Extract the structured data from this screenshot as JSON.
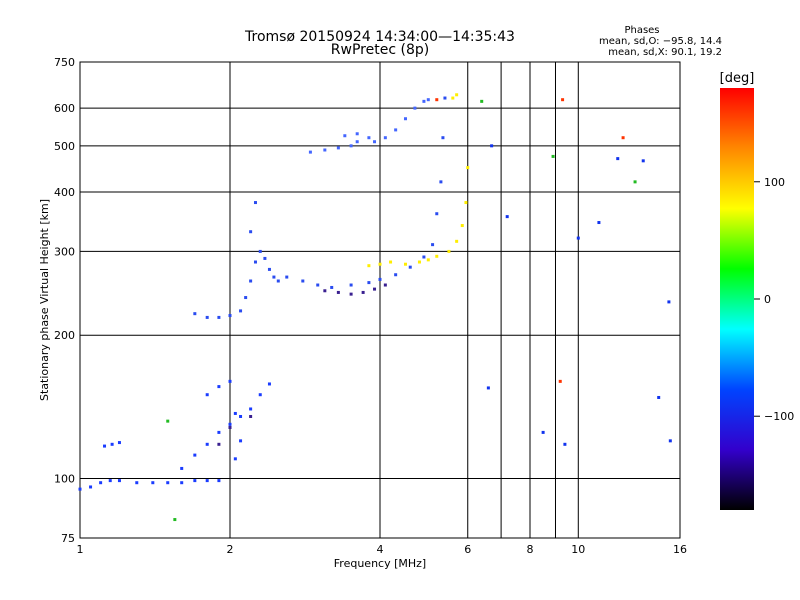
{
  "chart_data": {
    "type": "scatter",
    "title": "Tromsø 20150924 14:34:00—14:35:43",
    "subtitle": "RwPretec (8p)",
    "xlabel": "Frequency [MHz]",
    "ylabel": "Stationary phase Virtual Height [km]",
    "x_scale": "log",
    "y_scale": "log",
    "xlim": [
      1,
      16
    ],
    "ylim": [
      75,
      750
    ],
    "x_ticks": [
      1,
      2,
      4,
      6,
      8,
      10,
      16
    ],
    "x_tick_labels": [
      "1",
      "2",
      "4",
      "6",
      "8",
      "10",
      "16"
    ],
    "x_grid": [
      2,
      4,
      6,
      7,
      8,
      9,
      10
    ],
    "y_ticks": [
      75,
      100,
      200,
      300,
      400,
      500,
      600,
      750
    ],
    "y_tick_labels": [
      "75",
      "100",
      "200",
      "300",
      "400",
      "500",
      "600",
      "750"
    ],
    "y_grid": [
      100,
      200,
      300,
      400,
      500,
      600
    ],
    "grid": true,
    "phases_box": {
      "title": "Phases",
      "line1": "mean, sd,O: −95.8, 14.4",
      "line2": "mean, sd,X:  90.1, 19.2"
    },
    "colorbar": {
      "label": "[deg]",
      "range": [
        -180,
        180
      ],
      "ticks": [
        100,
        0,
        -100
      ],
      "tick_labels": [
        "100",
        "0",
        "−100"
      ],
      "colors": [
        "#ff0000",
        "#ff8800",
        "#ffff00",
        "#00ff00",
        "#00ffff",
        "#0044ff",
        "#3300cc",
        "#000000"
      ]
    },
    "series": [
      {
        "color": "#1a3cff",
        "points": [
          [
            1.0,
            95
          ],
          [
            1.05,
            96
          ],
          [
            1.1,
            98
          ],
          [
            1.15,
            99
          ],
          [
            1.2,
            99
          ],
          [
            1.3,
            98
          ],
          [
            1.4,
            98
          ],
          [
            1.5,
            98
          ],
          [
            1.6,
            98
          ],
          [
            1.7,
            99
          ],
          [
            1.8,
            99
          ],
          [
            1.9,
            99
          ],
          [
            1.12,
            117
          ],
          [
            1.16,
            118
          ],
          [
            1.2,
            119
          ],
          [
            1.6,
            105
          ],
          [
            1.7,
            112
          ],
          [
            1.8,
            118
          ],
          [
            1.9,
            125
          ],
          [
            2.0,
            130
          ],
          [
            2.05,
            137
          ],
          [
            2.1,
            135
          ],
          [
            2.2,
            140
          ],
          [
            2.3,
            150
          ],
          [
            2.4,
            158
          ],
          [
            1.8,
            150
          ],
          [
            1.9,
            156
          ],
          [
            2.0,
            160
          ],
          [
            2.05,
            110
          ],
          [
            2.1,
            120
          ]
        ]
      },
      {
        "color": "#2a4cf0",
        "points": [
          [
            1.7,
            222
          ],
          [
            1.8,
            218
          ],
          [
            1.9,
            218
          ],
          [
            2.0,
            220
          ],
          [
            2.1,
            225
          ],
          [
            2.15,
            240
          ],
          [
            2.2,
            260
          ],
          [
            2.25,
            285
          ],
          [
            2.3,
            300
          ],
          [
            2.35,
            290
          ],
          [
            2.4,
            275
          ],
          [
            2.45,
            265
          ],
          [
            2.5,
            260
          ],
          [
            2.2,
            330
          ],
          [
            2.25,
            380
          ],
          [
            2.6,
            265
          ],
          [
            2.8,
            260
          ],
          [
            3.0,
            255
          ],
          [
            3.2,
            252
          ],
          [
            3.5,
            255
          ],
          [
            3.8,
            258
          ],
          [
            4.0,
            262
          ],
          [
            4.3,
            268
          ],
          [
            4.6,
            278
          ],
          [
            4.9,
            292
          ],
          [
            5.1,
            310
          ],
          [
            5.2,
            360
          ],
          [
            5.3,
            420
          ],
          [
            5.35,
            520
          ],
          [
            5.4,
            630
          ]
        ]
      },
      {
        "color": "#4466ff",
        "points": [
          [
            2.9,
            485
          ],
          [
            3.1,
            490
          ],
          [
            3.3,
            495
          ],
          [
            3.5,
            500
          ],
          [
            3.6,
            510
          ],
          [
            3.4,
            525
          ],
          [
            3.6,
            530
          ],
          [
            3.8,
            520
          ],
          [
            3.9,
            510
          ],
          [
            4.1,
            520
          ],
          [
            4.3,
            540
          ],
          [
            4.5,
            570
          ],
          [
            4.7,
            600
          ],
          [
            4.9,
            620
          ],
          [
            5.0,
            625
          ]
        ]
      },
      {
        "color": "#ffee00",
        "points": [
          [
            3.8,
            280
          ],
          [
            4.0,
            282
          ],
          [
            4.2,
            285
          ],
          [
            4.5,
            282
          ],
          [
            4.8,
            285
          ],
          [
            5.0,
            288
          ],
          [
            5.2,
            293
          ],
          [
            5.5,
            300
          ],
          [
            5.7,
            315
          ],
          [
            5.85,
            340
          ],
          [
            5.95,
            380
          ],
          [
            6.0,
            450
          ],
          [
            5.6,
            630
          ],
          [
            5.7,
            640
          ]
        ]
      },
      {
        "color": "#3a2090",
        "points": [
          [
            3.1,
            248
          ],
          [
            3.3,
            246
          ],
          [
            3.5,
            244
          ],
          [
            3.7,
            246
          ],
          [
            3.9,
            250
          ],
          [
            4.1,
            255
          ],
          [
            2.0,
            128
          ],
          [
            2.2,
            135
          ],
          [
            1.9,
            118
          ]
        ]
      },
      {
        "color": "#ff3300",
        "points": [
          [
            5.2,
            625
          ],
          [
            9.3,
            625
          ],
          [
            12.3,
            520
          ],
          [
            9.2,
            160
          ]
        ]
      },
      {
        "color": "#22bb22",
        "points": [
          [
            1.5,
            132
          ],
          [
            1.55,
            82
          ],
          [
            6.4,
            620
          ],
          [
            8.9,
            475
          ],
          [
            13.0,
            420
          ]
        ]
      },
      {
        "color": "#1133ee",
        "points": [
          [
            6.6,
            155
          ],
          [
            6.7,
            500
          ],
          [
            7.2,
            355
          ],
          [
            8.5,
            125
          ],
          [
            9.4,
            118
          ],
          [
            10.0,
            320
          ],
          [
            11.0,
            345
          ],
          [
            12.0,
            470
          ],
          [
            13.5,
            465
          ],
          [
            14.5,
            148
          ],
          [
            15.2,
            235
          ],
          [
            15.3,
            120
          ]
        ]
      }
    ]
  }
}
